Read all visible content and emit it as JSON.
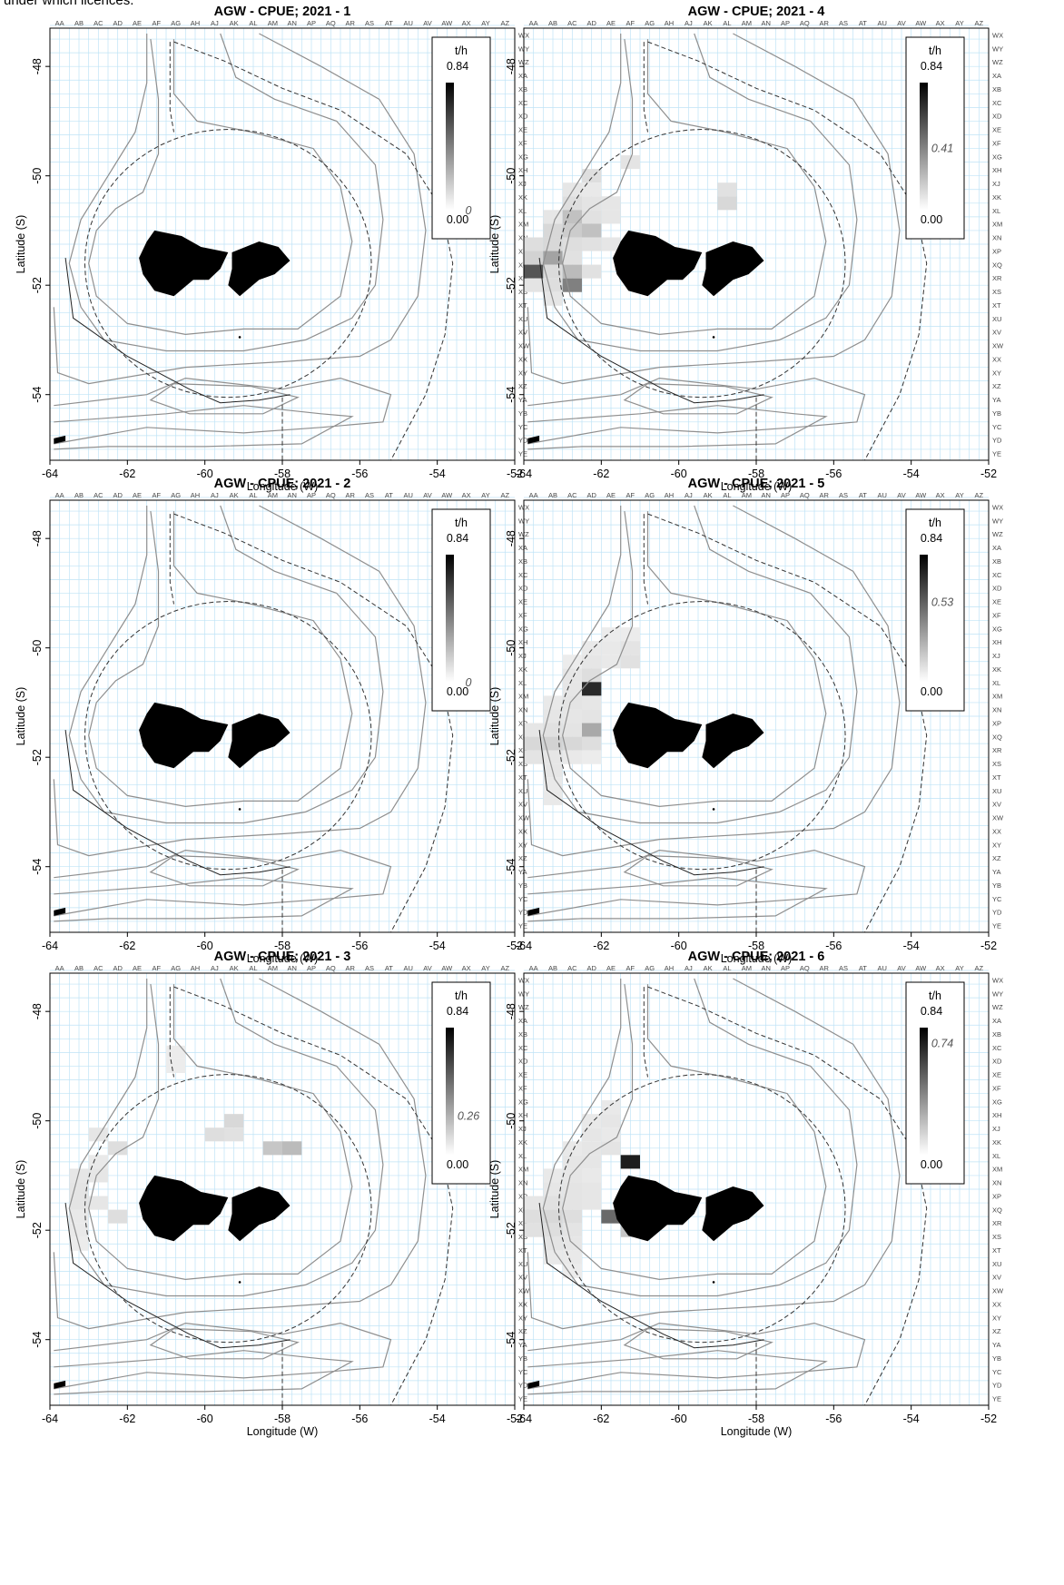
{
  "caption": "under which licences.",
  "colors": {
    "grid": "#bfe3f6",
    "contour": "#8f8f8f",
    "land": "#000000",
    "frame": "#000000"
  },
  "chart_data": [
    {
      "type": "heatmap",
      "title": "AGW - CPUE; 2021 - 1",
      "xlabel": "Longitude (W)",
      "ylabel": "Latitude (S)",
      "xlim": [
        -64,
        -52
      ],
      "ylim": [
        -55.2,
        -47.3
      ],
      "legend": {
        "title": "t/h",
        "max": "0.84",
        "min": "0.00",
        "value": "0",
        "value_num": 0,
        "placement": "top-right"
      },
      "cells": []
    },
    {
      "type": "heatmap",
      "title": "AGW - CPUE; 2021 - 2",
      "xlabel": "Longitude (W)",
      "ylabel": "Latitude (S)",
      "xlim": [
        -64,
        -52
      ],
      "ylim": [
        -55.2,
        -47.3
      ],
      "legend": {
        "title": "t/h",
        "max": "0.84",
        "min": "0.00",
        "value": "0",
        "value_num": 0,
        "placement": "top-right"
      },
      "cells": []
    },
    {
      "type": "heatmap",
      "title": "AGW - CPUE; 2021 - 3",
      "xlabel": "Longitude (W)",
      "ylabel": "Latitude (S)",
      "xlim": [
        -64,
        -52
      ],
      "ylim": [
        -55.2,
        -47.3
      ],
      "legend": {
        "title": "t/h",
        "max": "0.84",
        "min": "0.00",
        "value": "0.26",
        "value_num": 0.26,
        "placement": "top-right"
      },
      "cells": [
        {
          "lon": -60.75,
          "lat": -48.75,
          "v": 0.03
        },
        {
          "lon": -60.75,
          "lat": -49.0,
          "v": 0.03
        },
        {
          "lon": -62.75,
          "lat": -50.25,
          "v": 0.05
        },
        {
          "lon": -62.25,
          "lat": -50.5,
          "v": 0.08
        },
        {
          "lon": -59.25,
          "lat": -50.0,
          "v": 0.1
        },
        {
          "lon": -59.75,
          "lat": -50.25,
          "v": 0.08
        },
        {
          "lon": -59.25,
          "lat": -50.25,
          "v": 0.07
        },
        {
          "lon": -58.25,
          "lat": -50.5,
          "v": 0.16
        },
        {
          "lon": -57.75,
          "lat": -50.5,
          "v": 0.2
        },
        {
          "lon": -62.75,
          "lat": -50.75,
          "v": 0.04
        },
        {
          "lon": -62.75,
          "lat": -51.0,
          "v": 0.05
        },
        {
          "lon": -63.25,
          "lat": -51.0,
          "v": 0.05
        },
        {
          "lon": -63.25,
          "lat": -51.25,
          "v": 0.06
        },
        {
          "lon": -63.25,
          "lat": -51.5,
          "v": 0.06
        },
        {
          "lon": -62.75,
          "lat": -51.5,
          "v": 0.05
        },
        {
          "lon": -62.25,
          "lat": -51.75,
          "v": 0.08
        },
        {
          "lon": -63.25,
          "lat": -51.75,
          "v": 0.04
        },
        {
          "lon": -63.25,
          "lat": -52.0,
          "v": 0.04
        },
        {
          "lon": -63.25,
          "lat": -52.25,
          "v": 0.03
        }
      ]
    },
    {
      "type": "heatmap",
      "title": "AGW - CPUE; 2021 - 4",
      "xlabel": "Longitude (W)",
      "ylabel": "Latitude (S)",
      "xlim": [
        -64,
        -52
      ],
      "ylim": [
        -55.2,
        -47.3
      ],
      "legend": {
        "title": "t/h",
        "max": "0.84",
        "min": "0.00",
        "value": "0.41",
        "value_num": 0.41,
        "placement": "top-right"
      },
      "cells": [
        {
          "lon": -61.25,
          "lat": -49.75,
          "v": 0.06
        },
        {
          "lon": -62.25,
          "lat": -50.0,
          "v": 0.08
        },
        {
          "lon": -62.75,
          "lat": -50.25,
          "v": 0.05
        },
        {
          "lon": -62.25,
          "lat": -50.25,
          "v": 0.04
        },
        {
          "lon": -58.75,
          "lat": -50.25,
          "v": 0.07
        },
        {
          "lon": -58.75,
          "lat": -50.5,
          "v": 0.1
        },
        {
          "lon": -62.75,
          "lat": -50.5,
          "v": 0.08
        },
        {
          "lon": -62.25,
          "lat": -50.5,
          "v": 0.06
        },
        {
          "lon": -61.75,
          "lat": -50.5,
          "v": 0.05
        },
        {
          "lon": -63.25,
          "lat": -50.75,
          "v": 0.05
        },
        {
          "lon": -62.75,
          "lat": -50.75,
          "v": 0.18
        },
        {
          "lon": -62.25,
          "lat": -50.75,
          "v": 0.07
        },
        {
          "lon": -61.75,
          "lat": -50.75,
          "v": 0.05
        },
        {
          "lon": -63.25,
          "lat": -51.0,
          "v": 0.1
        },
        {
          "lon": -62.75,
          "lat": -51.0,
          "v": 0.14
        },
        {
          "lon": -62.25,
          "lat": -51.0,
          "v": 0.18
        },
        {
          "lon": -63.75,
          "lat": -51.25,
          "v": 0.08
        },
        {
          "lon": -63.25,
          "lat": -51.25,
          "v": 0.1
        },
        {
          "lon": -62.75,
          "lat": -51.25,
          "v": 0.08
        },
        {
          "lon": -62.25,
          "lat": -51.25,
          "v": 0.07
        },
        {
          "lon": -61.75,
          "lat": -51.25,
          "v": 0.05
        },
        {
          "lon": -63.75,
          "lat": -51.5,
          "v": 0.12
        },
        {
          "lon": -63.25,
          "lat": -51.5,
          "v": 0.28
        },
        {
          "lon": -62.75,
          "lat": -51.5,
          "v": 0.07
        },
        {
          "lon": -63.75,
          "lat": -51.75,
          "v": 0.55
        },
        {
          "lon": -63.25,
          "lat": -51.75,
          "v": 0.09
        },
        {
          "lon": -62.75,
          "lat": -51.75,
          "v": 0.2
        },
        {
          "lon": -62.25,
          "lat": -51.75,
          "v": 0.07
        },
        {
          "lon": -63.75,
          "lat": -52.0,
          "v": 0.06
        },
        {
          "lon": -63.25,
          "lat": -52.0,
          "v": 0.08
        },
        {
          "lon": -62.75,
          "lat": -52.0,
          "v": 0.4
        },
        {
          "lon": -63.25,
          "lat": -52.25,
          "v": 0.05
        }
      ]
    },
    {
      "type": "heatmap",
      "title": "AGW - CPUE; 2021 - 5",
      "xlabel": "Longitude (W)",
      "ylabel": "Latitude (S)",
      "xlim": [
        -64,
        -52
      ],
      "ylim": [
        -55.2,
        -47.3
      ],
      "legend": {
        "title": "t/h",
        "max": "0.84",
        "min": "0.00",
        "value": "0.53",
        "value_num": 0.53,
        "placement": "top-right"
      },
      "cells": [
        {
          "lon": -61.75,
          "lat": -49.75,
          "v": 0.03
        },
        {
          "lon": -61.25,
          "lat": -49.75,
          "v": 0.03
        },
        {
          "lon": -62.25,
          "lat": -50.0,
          "v": 0.04
        },
        {
          "lon": -61.75,
          "lat": -50.0,
          "v": 0.04
        },
        {
          "lon": -61.25,
          "lat": -50.0,
          "v": 0.06
        },
        {
          "lon": -62.75,
          "lat": -50.25,
          "v": 0.03
        },
        {
          "lon": -62.25,
          "lat": -50.25,
          "v": 0.05
        },
        {
          "lon": -61.75,
          "lat": -50.25,
          "v": 0.04
        },
        {
          "lon": -61.25,
          "lat": -50.25,
          "v": 0.07
        },
        {
          "lon": -62.75,
          "lat": -50.5,
          "v": 0.05
        },
        {
          "lon": -62.25,
          "lat": -50.5,
          "v": 0.08
        },
        {
          "lon": -62.75,
          "lat": -50.75,
          "v": 0.05
        },
        {
          "lon": -62.25,
          "lat": -50.75,
          "v": 0.7
        },
        {
          "lon": -63.25,
          "lat": -51.0,
          "v": 0.04
        },
        {
          "lon": -62.75,
          "lat": -51.0,
          "v": 0.06
        },
        {
          "lon": -62.25,
          "lat": -51.0,
          "v": 0.05
        },
        {
          "lon": -63.25,
          "lat": -51.25,
          "v": 0.05
        },
        {
          "lon": -62.75,
          "lat": -51.25,
          "v": 0.05
        },
        {
          "lon": -62.25,
          "lat": -51.25,
          "v": 0.06
        },
        {
          "lon": -63.75,
          "lat": -51.5,
          "v": 0.05
        },
        {
          "lon": -63.25,
          "lat": -51.5,
          "v": 0.07
        },
        {
          "lon": -62.75,
          "lat": -51.5,
          "v": 0.06
        },
        {
          "lon": -62.25,
          "lat": -51.5,
          "v": 0.26
        },
        {
          "lon": -63.75,
          "lat": -51.75,
          "v": 0.1
        },
        {
          "lon": -63.25,
          "lat": -51.75,
          "v": 0.12
        },
        {
          "lon": -62.75,
          "lat": -51.75,
          "v": 0.1
        },
        {
          "lon": -62.25,
          "lat": -51.75,
          "v": 0.08
        },
        {
          "lon": -63.75,
          "lat": -52.0,
          "v": 0.06
        },
        {
          "lon": -63.25,
          "lat": -52.0,
          "v": 0.05
        },
        {
          "lon": -62.75,
          "lat": -52.0,
          "v": 0.04
        },
        {
          "lon": -62.25,
          "lat": -52.0,
          "v": 0.03
        },
        {
          "lon": -63.25,
          "lat": -52.25,
          "v": 0.05
        },
        {
          "lon": -63.25,
          "lat": -52.5,
          "v": 0.04
        },
        {
          "lon": -63.25,
          "lat": -52.75,
          "v": 0.04
        }
      ]
    },
    {
      "type": "heatmap",
      "title": "AGW - CPUE; 2021 - 6",
      "xlabel": "Longitude (W)",
      "ylabel": "Latitude (S)",
      "xlim": [
        -64,
        -52
      ],
      "ylim": [
        -55.2,
        -47.3
      ],
      "legend": {
        "title": "t/h",
        "max": "0.84",
        "min": "0.00",
        "value": "0.74",
        "value_num": 0.74,
        "placement": "top-right"
      },
      "cells": [
        {
          "lon": -61.75,
          "lat": -49.75,
          "v": 0.04
        },
        {
          "lon": -62.25,
          "lat": -50.0,
          "v": 0.04
        },
        {
          "lon": -61.75,
          "lat": -50.0,
          "v": 0.05
        },
        {
          "lon": -62.25,
          "lat": -50.25,
          "v": 0.05
        },
        {
          "lon": -61.75,
          "lat": -50.25,
          "v": 0.04
        },
        {
          "lon": -62.75,
          "lat": -50.5,
          "v": 0.04
        },
        {
          "lon": -62.25,
          "lat": -50.5,
          "v": 0.05
        },
        {
          "lon": -61.75,
          "lat": -50.5,
          "v": 0.06
        },
        {
          "lon": -62.75,
          "lat": -50.75,
          "v": 0.05
        },
        {
          "lon": -62.25,
          "lat": -50.75,
          "v": 0.05
        },
        {
          "lon": -61.25,
          "lat": -50.75,
          "v": 0.74
        },
        {
          "lon": -63.25,
          "lat": -51.0,
          "v": 0.04
        },
        {
          "lon": -62.75,
          "lat": -51.0,
          "v": 0.05
        },
        {
          "lon": -62.25,
          "lat": -51.0,
          "v": 0.04
        },
        {
          "lon": -63.25,
          "lat": -51.25,
          "v": 0.05
        },
        {
          "lon": -62.75,
          "lat": -51.25,
          "v": 0.06
        },
        {
          "lon": -62.25,
          "lat": -51.25,
          "v": 0.05
        },
        {
          "lon": -63.75,
          "lat": -51.5,
          "v": 0.05
        },
        {
          "lon": -63.25,
          "lat": -51.5,
          "v": 0.07
        },
        {
          "lon": -62.75,
          "lat": -51.5,
          "v": 0.06
        },
        {
          "lon": -62.25,
          "lat": -51.5,
          "v": 0.05
        },
        {
          "lon": -63.75,
          "lat": -51.75,
          "v": 0.08
        },
        {
          "lon": -63.25,
          "lat": -51.75,
          "v": 0.1
        },
        {
          "lon": -62.75,
          "lat": -51.75,
          "v": 0.08
        },
        {
          "lon": -61.75,
          "lat": -51.75,
          "v": 0.48
        },
        {
          "lon": -63.75,
          "lat": -52.0,
          "v": 0.07
        },
        {
          "lon": -63.25,
          "lat": -52.0,
          "v": 0.08
        },
        {
          "lon": -62.75,
          "lat": -52.0,
          "v": 0.06
        },
        {
          "lon": -61.25,
          "lat": -52.0,
          "v": 0.16
        },
        {
          "lon": -63.25,
          "lat": -52.25,
          "v": 0.06
        },
        {
          "lon": -62.75,
          "lat": -52.25,
          "v": 0.05
        },
        {
          "lon": -63.25,
          "lat": -52.5,
          "v": 0.04
        },
        {
          "lon": -62.75,
          "lat": -52.5,
          "v": 0.04
        },
        {
          "lon": -62.75,
          "lat": -52.75,
          "v": 0.03
        }
      ]
    }
  ],
  "panel_order": [
    0,
    3,
    1,
    4,
    2,
    5
  ],
  "xticks": [
    -64,
    -62,
    -60,
    -58,
    -56,
    -54,
    -52
  ],
  "yticks": [
    -48,
    -50,
    -52,
    -54
  ],
  "col_labels": [
    "AA",
    "AB",
    "AC",
    "AD",
    "AE",
    "AF",
    "AG",
    "AH",
    "AJ",
    "AK",
    "AL",
    "AM",
    "AN",
    "AP",
    "AQ",
    "AR",
    "AS",
    "AT",
    "AU",
    "AV",
    "AW",
    "AX",
    "AY",
    "AZ"
  ],
  "row_labels": [
    "WX",
    "WY",
    "WZ",
    "XA",
    "XB",
    "XC",
    "XD",
    "XE",
    "XF",
    "XG",
    "XH",
    "XJ",
    "XK",
    "XL",
    "XM",
    "XN",
    "XP",
    "XQ",
    "XR",
    "XS",
    "XT",
    "XU",
    "XV",
    "XW",
    "XX",
    "XY",
    "XZ",
    "YA",
    "YB",
    "YC",
    "YD",
    "YE"
  ]
}
